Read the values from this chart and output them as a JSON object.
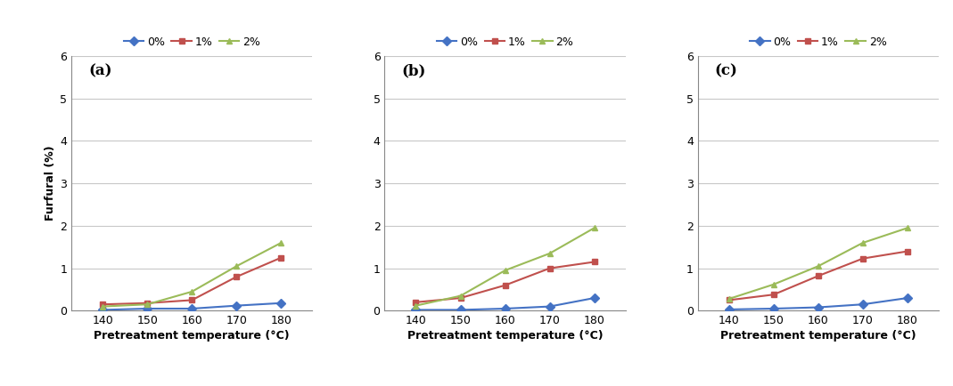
{
  "x": [
    140,
    150,
    160,
    170,
    180
  ],
  "panels": [
    {
      "label": "(a)",
      "series": {
        "0%": [
          0.02,
          0.05,
          0.05,
          0.12,
          0.18
        ],
        "1%": [
          0.15,
          0.18,
          0.25,
          0.8,
          1.25
        ],
        "2%": [
          0.1,
          0.15,
          0.45,
          1.05,
          1.6
        ]
      }
    },
    {
      "label": "(b)",
      "series": {
        "0%": [
          0.02,
          0.02,
          0.05,
          0.1,
          0.3
        ],
        "1%": [
          0.2,
          0.3,
          0.6,
          1.0,
          1.15
        ],
        "2%": [
          0.12,
          0.35,
          0.95,
          1.35,
          1.95
        ]
      }
    },
    {
      "label": "(c)",
      "series": {
        "0%": [
          0.03,
          0.05,
          0.08,
          0.15,
          0.3
        ],
        "1%": [
          0.25,
          0.38,
          0.82,
          1.23,
          1.4
        ],
        "2%": [
          0.28,
          0.62,
          1.05,
          1.6,
          1.95
        ]
      }
    }
  ],
  "colors": {
    "0%": "#4472C4",
    "1%": "#C0504D",
    "2%": "#9BBB59"
  },
  "markers": {
    "0%": "D",
    "1%": "s",
    "2%": "^"
  },
  "ylabel": "Furfural (%)",
  "xlabel": "Pretreatment temperature (°C)",
  "ylim": [
    0,
    6
  ],
  "yticks": [
    0,
    1,
    2,
    3,
    4,
    5,
    6
  ],
  "legend_labels": [
    "0%",
    "1%",
    "2%"
  ],
  "background_color": "#FFFFFF",
  "grid_color": "#C8C8C8",
  "figsize": [
    10.69,
    4.34
  ],
  "dpi": 100
}
